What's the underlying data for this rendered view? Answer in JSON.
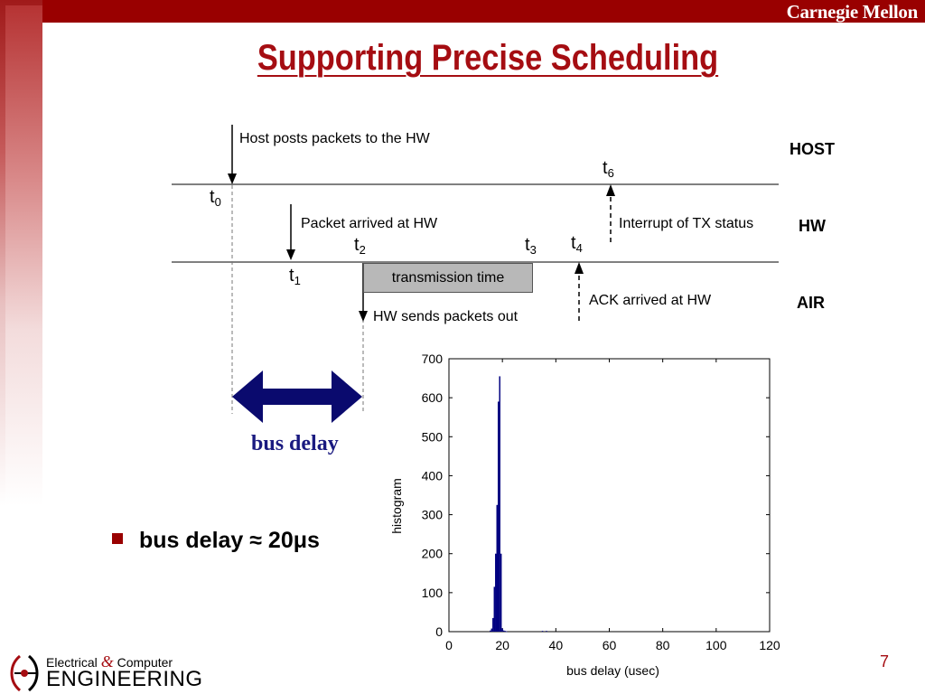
{
  "header": {
    "brand": "Carnegie Mellon"
  },
  "slide": {
    "title": "Supporting Precise Scheduling",
    "page_number": "7",
    "bullet": "bus delay ≈ 20μs"
  },
  "diagram": {
    "lanes": {
      "host": "HOST",
      "hw": "HW",
      "air": "AIR"
    },
    "labels": {
      "host_posts": "Host posts packets to the HW",
      "packet_arrived": "Packet arrived at HW",
      "interrupt": "Interrupt of TX status",
      "transmission": "transmission time",
      "ack": "ACK arrived at HW",
      "hw_sends": "HW sends packets out",
      "bus_delay": "bus delay"
    },
    "times": {
      "t0": {
        "base": "t",
        "sub": "0"
      },
      "t1": {
        "base": "t",
        "sub": "1"
      },
      "t2": {
        "base": "t",
        "sub": "2"
      },
      "t3": {
        "base": "t",
        "sub": "3"
      },
      "t4": {
        "base": "t",
        "sub": "4"
      },
      "t6": {
        "base": "t",
        "sub": "6"
      }
    }
  },
  "footer": {
    "logo_line1_a": "Electrical",
    "logo_amp": "&",
    "logo_line1_b": "Computer",
    "logo_line2": "ENGINEERING"
  },
  "colors": {
    "brand": "#990000",
    "title": "#a50d12",
    "bars": "#000080",
    "arrow": "#0a0a6e"
  },
  "chart_data": {
    "type": "bar",
    "xlabel": "bus delay (usec)",
    "ylabel": "histogram",
    "xlim": [
      0,
      120
    ],
    "ylim": [
      0,
      700
    ],
    "xticks": [
      0,
      20,
      40,
      60,
      80,
      100,
      120
    ],
    "yticks": [
      0,
      100,
      200,
      300,
      400,
      500,
      600,
      700
    ],
    "bin_width": 0.5,
    "x": [
      15.5,
      16.0,
      16.5,
      17.0,
      17.5,
      18.0,
      18.5,
      19.0,
      19.5,
      20.0,
      20.5,
      21.0,
      21.5,
      35.0,
      36.5
    ],
    "values": [
      3,
      8,
      35,
      115,
      200,
      325,
      590,
      655,
      200,
      8,
      3,
      2,
      1,
      2,
      2
    ]
  }
}
